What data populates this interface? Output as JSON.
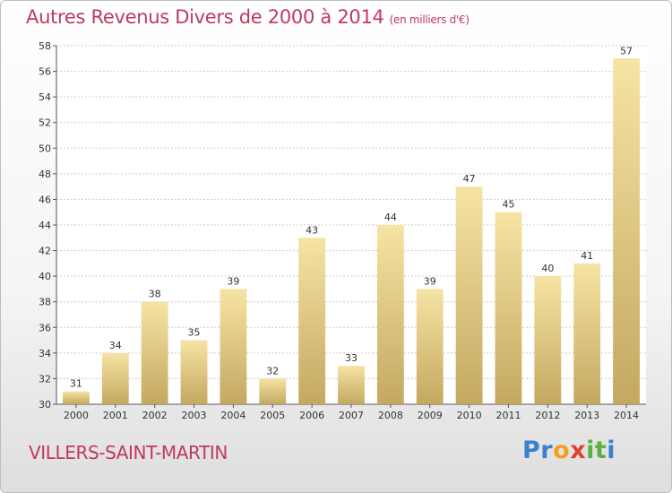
{
  "title": "Autres Revenus Divers de 2000 à 2014",
  "title_unit": "(en milliers d'€)",
  "location": "VILLERS-SAINT-MARTIN",
  "brand": {
    "letters": [
      {
        "char": "P",
        "color": "#3a7fd0"
      },
      {
        "char": "r",
        "color": "#3a7fd0"
      },
      {
        "char": "o",
        "color": "#f0a020"
      },
      {
        "char": "x",
        "color": "#e04030"
      },
      {
        "char": "i",
        "color": "#5ab040"
      },
      {
        "char": "t",
        "color": "#5ab040"
      },
      {
        "char": "i",
        "color": "#3a7fd0"
      }
    ]
  },
  "colors": {
    "title": "#bf3a5a",
    "bar_light": "#f6e4a4",
    "bar_dark": "#c4a860",
    "grid": "#cccccc"
  },
  "chart_data": {
    "type": "bar",
    "title": "Autres Revenus Divers de 2000 à 2014",
    "ylabel": "",
    "xlabel": "",
    "categories": [
      "2000",
      "2001",
      "2002",
      "2003",
      "2004",
      "2005",
      "2006",
      "2007",
      "2008",
      "2009",
      "2010",
      "2011",
      "2012",
      "2013",
      "2014"
    ],
    "values": [
      31,
      34,
      38,
      35,
      39,
      32,
      43,
      33,
      44,
      39,
      47,
      45,
      40,
      41,
      57
    ],
    "ylim": [
      30,
      58
    ],
    "yticks": [
      30,
      32,
      34,
      36,
      38,
      40,
      42,
      44,
      46,
      48,
      50,
      52,
      54,
      56,
      58
    ],
    "grid": true,
    "data_labels": true
  }
}
